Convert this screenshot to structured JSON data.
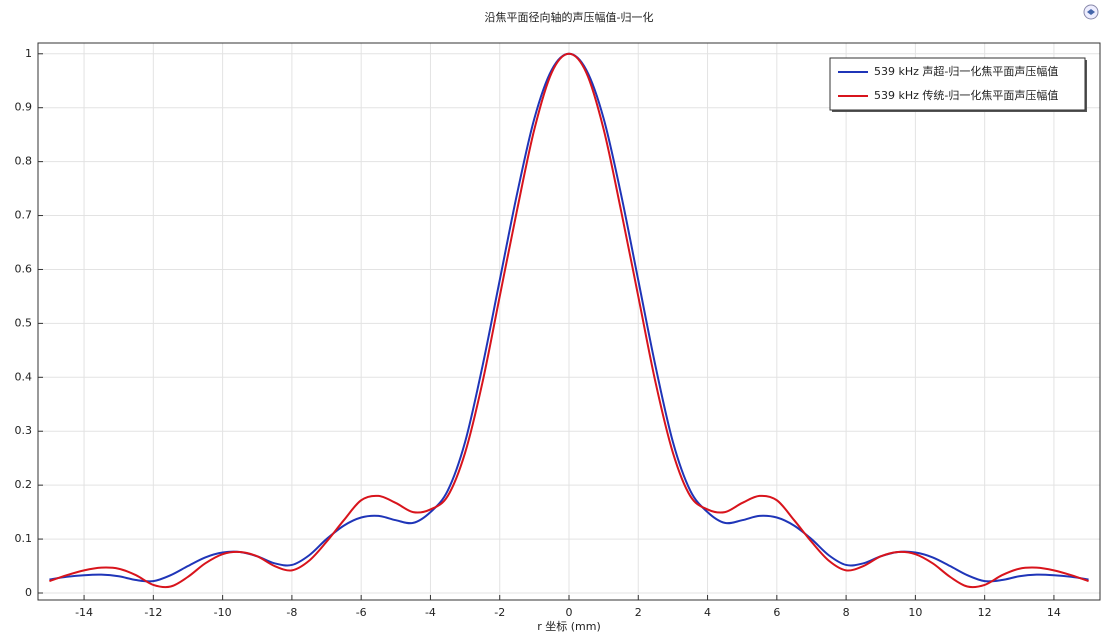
{
  "chart_data": {
    "type": "line",
    "title": "沿焦平面径向轴的声压幅值-归一化",
    "x_label": "r 坐标 (mm)",
    "x": [
      -15,
      -14.5,
      -14,
      -13.5,
      -13,
      -12.5,
      -12,
      -11.5,
      -11,
      -10.5,
      -10,
      -9.5,
      -9,
      -8.5,
      -8,
      -7.5,
      -7,
      -6.5,
      -6,
      -5.5,
      -5,
      -4.5,
      -4,
      -3.5,
      -3,
      -2.5,
      -2,
      -1.5,
      -1,
      -0.5,
      0,
      0.5,
      1,
      1.5,
      2,
      2.5,
      3,
      3.5,
      4,
      4.5,
      5,
      5.5,
      6,
      6.5,
      7,
      7.5,
      8,
      8.5,
      9,
      9.5,
      10,
      10.5,
      11,
      11.5,
      12,
      12.5,
      13,
      13.5,
      14,
      14.5,
      15
    ],
    "series": [
      {
        "name": "539 kHz 声超-归一化焦平面声压幅值",
        "color": "#1f35b8",
        "values": [
          0.025,
          0.03,
          0.033,
          0.034,
          0.031,
          0.024,
          0.022,
          0.033,
          0.05,
          0.066,
          0.075,
          0.076,
          0.068,
          0.055,
          0.052,
          0.07,
          0.1,
          0.125,
          0.14,
          0.143,
          0.135,
          0.13,
          0.15,
          0.19,
          0.28,
          0.42,
          0.58,
          0.74,
          0.88,
          0.97,
          1.0,
          0.97,
          0.88,
          0.74,
          0.58,
          0.42,
          0.28,
          0.19,
          0.15,
          0.13,
          0.135,
          0.143,
          0.14,
          0.125,
          0.1,
          0.07,
          0.052,
          0.055,
          0.068,
          0.076,
          0.075,
          0.066,
          0.05,
          0.033,
          0.022,
          0.024,
          0.031,
          0.034,
          0.033,
          0.03,
          0.025
        ]
      },
      {
        "name": "539 kHz 传统-归一化焦平面声压幅值",
        "color": "#d8141c",
        "values": [
          0.022,
          0.033,
          0.042,
          0.047,
          0.045,
          0.033,
          0.015,
          0.012,
          0.03,
          0.055,
          0.072,
          0.076,
          0.068,
          0.05,
          0.042,
          0.06,
          0.095,
          0.135,
          0.172,
          0.18,
          0.167,
          0.15,
          0.155,
          0.18,
          0.26,
          0.39,
          0.55,
          0.71,
          0.86,
          0.965,
          1.0,
          0.965,
          0.86,
          0.71,
          0.55,
          0.39,
          0.26,
          0.18,
          0.155,
          0.15,
          0.167,
          0.18,
          0.172,
          0.135,
          0.095,
          0.06,
          0.042,
          0.05,
          0.068,
          0.076,
          0.072,
          0.055,
          0.03,
          0.012,
          0.015,
          0.033,
          0.045,
          0.047,
          0.042,
          0.033,
          0.022
        ]
      }
    ],
    "xlim": [
      -15.33,
      15.33
    ],
    "ylim": [
      -0.013,
      1.02
    ],
    "xticks": [
      -14,
      -12,
      -10,
      -8,
      -6,
      -4,
      -2,
      0,
      2,
      4,
      6,
      8,
      10,
      12,
      14
    ],
    "yticks": [
      0,
      0.1,
      0.2,
      0.3,
      0.4,
      0.5,
      0.6,
      0.7,
      0.8,
      0.9,
      1
    ],
    "grid": true,
    "legend": "top-right"
  }
}
